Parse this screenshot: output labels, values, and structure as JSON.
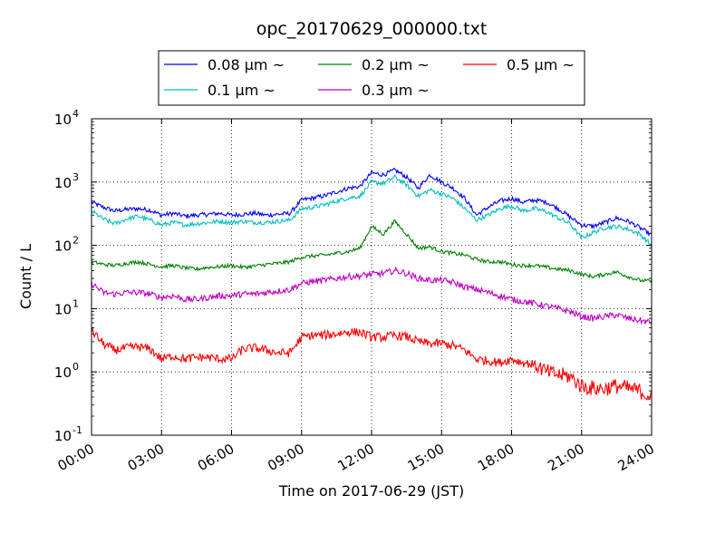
{
  "chart_data": {
    "type": "line",
    "title": "opc_20170629_000000.txt",
    "xlabel": "Time on 2017-06-29 (JST)",
    "ylabel": "Count / L",
    "y_scale": "log",
    "ylim": [
      0.1,
      10000
    ],
    "xlim": [
      "00:00",
      "24:00"
    ],
    "grid": true,
    "legend_position": "top, above plot",
    "x_ticks": [
      "00:00",
      "03:00",
      "06:00",
      "09:00",
      "12:00",
      "15:00",
      "18:00",
      "21:00",
      "24:00"
    ],
    "y_ticks": [
      {
        "base": "10",
        "exp": "-1",
        "value": 0.1
      },
      {
        "base": "10",
        "exp": "0",
        "value": 1
      },
      {
        "base": "10",
        "exp": "1",
        "value": 10
      },
      {
        "base": "10",
        "exp": "2",
        "value": 100
      },
      {
        "base": "10",
        "exp": "3",
        "value": 1000
      },
      {
        "base": "10",
        "exp": "4",
        "value": 10000
      }
    ],
    "x_hours": [
      0,
      0.5,
      1,
      1.5,
      2,
      2.5,
      3,
      3.5,
      4,
      4.5,
      5,
      5.5,
      6,
      6.5,
      7,
      7.5,
      8,
      8.5,
      9,
      9.5,
      10,
      10.5,
      11,
      11.5,
      12,
      12.5,
      13,
      13.5,
      14,
      14.5,
      15,
      15.5,
      16,
      16.5,
      17,
      17.5,
      18,
      18.5,
      19,
      19.5,
      20,
      20.5,
      21,
      21.5,
      22,
      22.5,
      23,
      23.5,
      24
    ],
    "series": [
      {
        "name": "0.08 μm ~",
        "color": "#0000ff",
        "values": [
          480,
          400,
          350,
          370,
          380,
          360,
          300,
          320,
          290,
          300,
          310,
          320,
          300,
          310,
          320,
          300,
          310,
          320,
          520,
          560,
          610,
          700,
          800,
          850,
          1400,
          1300,
          1550,
          1200,
          800,
          1300,
          1000,
          800,
          550,
          300,
          400,
          500,
          550,
          480,
          520,
          480,
          380,
          280,
          210,
          200,
          230,
          270,
          240,
          190,
          145
        ]
      },
      {
        "name": "0.1 μm ~",
        "color": "#00bfbf",
        "values": [
          350,
          260,
          220,
          260,
          290,
          250,
          210,
          230,
          210,
          220,
          230,
          240,
          230,
          240,
          230,
          230,
          240,
          250,
          380,
          400,
          440,
          500,
          560,
          600,
          1000,
          950,
          1200,
          900,
          600,
          750,
          650,
          550,
          380,
          250,
          300,
          380,
          420,
          350,
          380,
          340,
          270,
          220,
          130,
          160,
          190,
          200,
          180,
          150,
          100
        ]
      },
      {
        "name": "0.2 μm ~",
        "color": "#008000",
        "values": [
          55,
          50,
          48,
          52,
          55,
          50,
          46,
          48,
          44,
          42,
          45,
          46,
          48,
          45,
          47,
          50,
          52,
          55,
          65,
          68,
          70,
          75,
          80,
          90,
          200,
          150,
          240,
          150,
          90,
          95,
          80,
          75,
          70,
          60,
          55,
          55,
          50,
          48,
          48,
          45,
          42,
          40,
          35,
          32,
          35,
          38,
          32,
          28,
          27
        ]
      },
      {
        "name": "0.3 μm ~",
        "color": "#bf00bf",
        "values": [
          25,
          18,
          17,
          18,
          18,
          17,
          15,
          16,
          14,
          14,
          15,
          16,
          16,
          17,
          17,
          18,
          19,
          20,
          25,
          27,
          28,
          30,
          32,
          33,
          35,
          36,
          40,
          36,
          30,
          28,
          28,
          26,
          22,
          20,
          18,
          16,
          14,
          13,
          12,
          11,
          10,
          9,
          7.5,
          7,
          7.5,
          8,
          7,
          6.5,
          6
        ]
      },
      {
        "name": "0.5 μm ~",
        "color": "#ff0000",
        "values": [
          4.5,
          2.8,
          2.2,
          2.4,
          2.5,
          2.3,
          1.6,
          1.8,
          1.6,
          1.7,
          1.7,
          1.6,
          1.6,
          2.3,
          2.4,
          2.2,
          2.0,
          2.0,
          3.5,
          3.8,
          3.8,
          4.0,
          4.3,
          4.2,
          3.6,
          3.5,
          3.8,
          3.6,
          3.0,
          2.8,
          2.8,
          2.6,
          2.2,
          1.6,
          1.5,
          1.4,
          1.6,
          1.4,
          1.3,
          1.0,
          0.9,
          0.85,
          0.6,
          0.55,
          0.55,
          0.6,
          0.55,
          0.5,
          0.4
        ]
      }
    ]
  }
}
